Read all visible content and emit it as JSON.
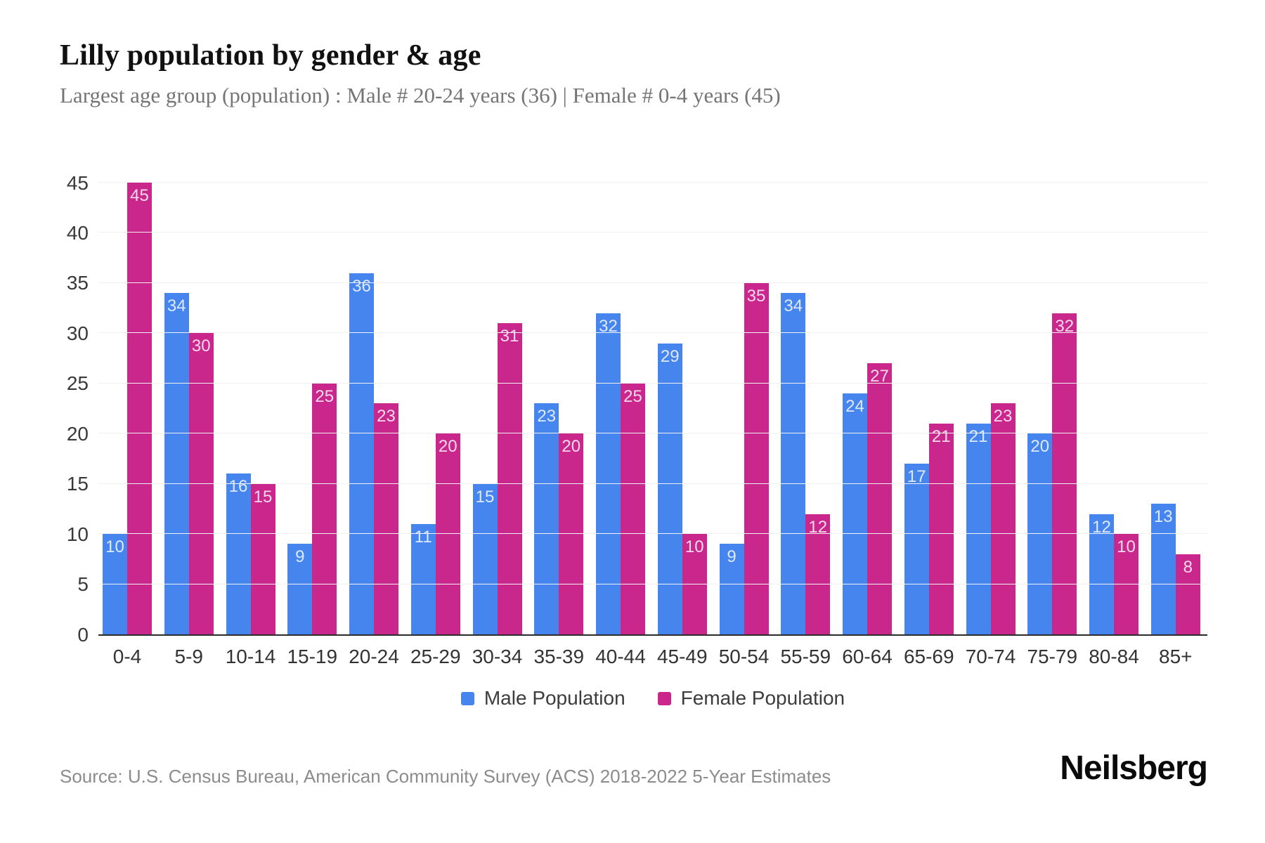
{
  "page": {
    "title": "Lilly population by gender & age",
    "subtitle": "Largest age group (population) : Male # 20-24 years (36) | Female # 0-4 years (45)",
    "source": "Source: U.S. Census Bureau, American Community Survey (ACS) 2018-2022 5-Year Estimates",
    "brand": "Neilsberg"
  },
  "colors": {
    "male": "#4685EE",
    "female": "#C9278C",
    "grid": "#F1F1F1",
    "axis": "#2B2B2B"
  },
  "chart_data": {
    "type": "bar",
    "title": "Lilly population by gender & age",
    "subtitle": "Largest age group (population) : Male # 20-24 years (36) | Female # 0-4 years (45)",
    "categories": [
      "0-4",
      "5-9",
      "10-14",
      "15-19",
      "20-24",
      "25-29",
      "30-34",
      "35-39",
      "40-44",
      "45-49",
      "50-54",
      "55-59",
      "60-64",
      "65-69",
      "70-74",
      "75-79",
      "80-84",
      "85+"
    ],
    "series": [
      {
        "name": "Male Population",
        "color_key": "male",
        "values": [
          10,
          34,
          16,
          9,
          36,
          11,
          15,
          23,
          32,
          29,
          9,
          34,
          24,
          17,
          21,
          20,
          12,
          13
        ]
      },
      {
        "name": "Female Population",
        "color_key": "female",
        "values": [
          45,
          30,
          15,
          25,
          23,
          20,
          31,
          20,
          25,
          10,
          35,
          12,
          27,
          21,
          23,
          32,
          10,
          8
        ]
      }
    ],
    "xlabel": "",
    "ylabel": "",
    "ylim": [
      0,
      45
    ],
    "yticks": [
      0,
      5,
      10,
      15,
      20,
      25,
      30,
      35,
      40,
      45
    ],
    "grid": true,
    "legend_position": "bottom",
    "bar_value_labels": true
  }
}
